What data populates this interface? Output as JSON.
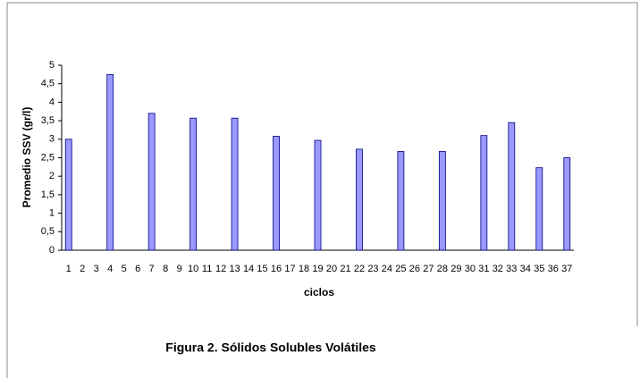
{
  "chart_data": {
    "type": "bar",
    "x_label": "ciclos",
    "y_label": "Promedio SSV (gr/l)",
    "caption": "Figura 2. Sólidos Solubles Volátiles",
    "categories": [
      "1",
      "2",
      "3",
      "4",
      "5",
      "6",
      "7",
      "8",
      "9",
      "10",
      "11",
      "12",
      "13",
      "14",
      "15",
      "16",
      "17",
      "18",
      "19",
      "20",
      "21",
      "22",
      "23",
      "24",
      "25",
      "26",
      "27",
      "28",
      "29",
      "30",
      "31",
      "32",
      "33",
      "34",
      "35",
      "36",
      "37"
    ],
    "values": [
      3.0,
      null,
      null,
      4.75,
      null,
      null,
      3.7,
      null,
      null,
      3.57,
      null,
      null,
      3.57,
      null,
      null,
      3.08,
      null,
      null,
      2.97,
      null,
      null,
      2.73,
      null,
      null,
      2.67,
      null,
      null,
      2.67,
      null,
      null,
      3.1,
      null,
      3.45,
      null,
      2.23,
      null,
      2.5
    ],
    "color": "#9999ff",
    "ylim": [
      0,
      5
    ],
    "yticks": [
      0,
      {
        "value": 0.5,
        "label": "0,5"
      },
      1,
      {
        "value": 1.5,
        "label": "1,5"
      },
      2,
      {
        "value": 2.5,
        "label": "2,5"
      },
      3,
      {
        "value": 3.5,
        "label": "3,5"
      },
      4,
      {
        "value": 4.5,
        "label": "4,5"
      },
      5
    ],
    "grid": false
  }
}
